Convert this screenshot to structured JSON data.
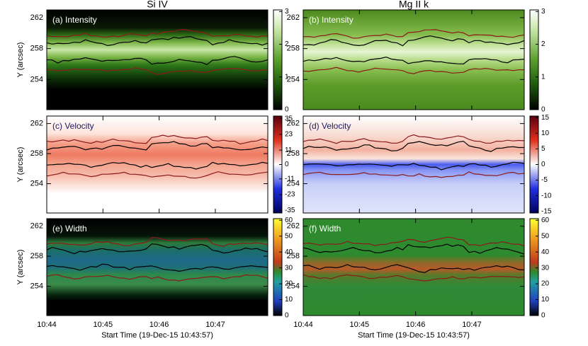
{
  "chart_data": [
    {
      "type": "heatmap",
      "title": "Si IV",
      "panel_label": "(a) Intensity",
      "ylabel": "Y (arcsec)",
      "ylim": [
        250.1,
        263
      ],
      "yticks": [
        254,
        258,
        262
      ],
      "xlim": [
        "10:44",
        "10:47:56"
      ],
      "xticks": [
        "10:44",
        "10:45",
        "10:46",
        "10:47"
      ],
      "colorbar": {
        "lim": [
          0,
          3.05
        ],
        "ticks": [
          0,
          1,
          2,
          3
        ]
      }
    },
    {
      "type": "heatmap",
      "title": "Mg II k",
      "panel_label": "(b) Intensity",
      "ylim": [
        250.1,
        263
      ],
      "yticks": [
        254,
        258,
        262
      ],
      "xlim": [
        "10:44",
        "10:47:56"
      ],
      "xticks": [
        "10:44",
        "10:45",
        "10:46",
        "10:47"
      ],
      "colorbar": {
        "lim": [
          0,
          3.05
        ],
        "ticks": [
          0,
          1,
          2,
          3
        ]
      }
    },
    {
      "type": "heatmap",
      "panel_label": "(c) Velocity",
      "ylabel": "Y (arcsec)",
      "ylim": [
        250.1,
        263
      ],
      "yticks": [
        254,
        258,
        262
      ],
      "xlim": [
        "10:44",
        "10:47:56"
      ],
      "xticks": [
        "10:44",
        "10:45",
        "10:46",
        "10:47"
      ],
      "colorbar": {
        "lim": [
          -37,
          37
        ],
        "ticks": [
          35,
          23,
          11,
          0,
          -11,
          -23,
          -35
        ]
      }
    },
    {
      "type": "heatmap",
      "panel_label": "(d) Velocity",
      "ylim": [
        250.1,
        263
      ],
      "yticks": [
        254,
        258,
        262
      ],
      "xlim": [
        "10:44",
        "10:47:56"
      ],
      "xticks": [
        "10:44",
        "10:45",
        "10:46",
        "10:47"
      ],
      "colorbar": {
        "lim": [
          -15.5,
          15.5
        ],
        "ticks": [
          15,
          10,
          5,
          0,
          -5,
          -10,
          -15
        ]
      }
    },
    {
      "type": "heatmap",
      "panel_label": "(e) Width",
      "ylabel": "Y (arcsec)",
      "xlabel": "Start Time (19-Dec-15 10:43:57)",
      "ylim": [
        250.1,
        263
      ],
      "yticks": [
        254,
        258,
        262
      ],
      "xlim": [
        "10:44",
        "10:47:56"
      ],
      "xticks": [
        "10:44",
        "10:45",
        "10:46",
        "10:47"
      ],
      "colorbar": {
        "lim": [
          0,
          61
        ],
        "ticks": [
          0,
          10,
          20,
          30,
          40,
          50,
          60
        ]
      }
    },
    {
      "type": "heatmap",
      "panel_label": "(f) Width",
      "xlabel": "Start Time (19-Dec-15 10:43:57)",
      "ylim": [
        250.1,
        263
      ],
      "yticks": [
        254,
        258,
        262
      ],
      "xlim": [
        "10:44",
        "10:47:56"
      ],
      "xticks": [
        "10:44",
        "10:45",
        "10:46",
        "10:47"
      ],
      "colorbar": {
        "lim": [
          0,
          61
        ],
        "ticks": [
          0,
          10,
          20,
          30,
          40,
          50,
          60
        ]
      }
    }
  ]
}
